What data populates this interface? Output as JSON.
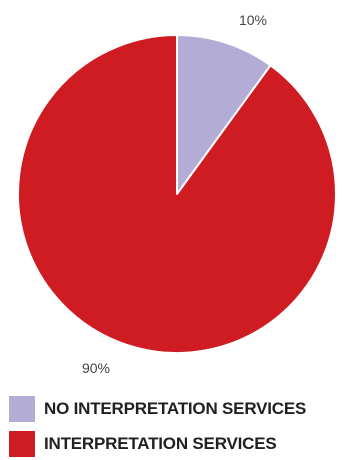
{
  "chart_data": {
    "type": "pie",
    "slices": [
      {
        "label": "NO INTERPRETATION SERVICES",
        "value": 10,
        "display": "10%",
        "color": "#b3acd4"
      },
      {
        "label": "INTERPRETATION SERVICES",
        "value": 90,
        "display": "90%",
        "color": "#cf1b22"
      }
    ],
    "start_angle_deg": 0,
    "direction": "clockwise",
    "legend_position": "bottom-left"
  }
}
